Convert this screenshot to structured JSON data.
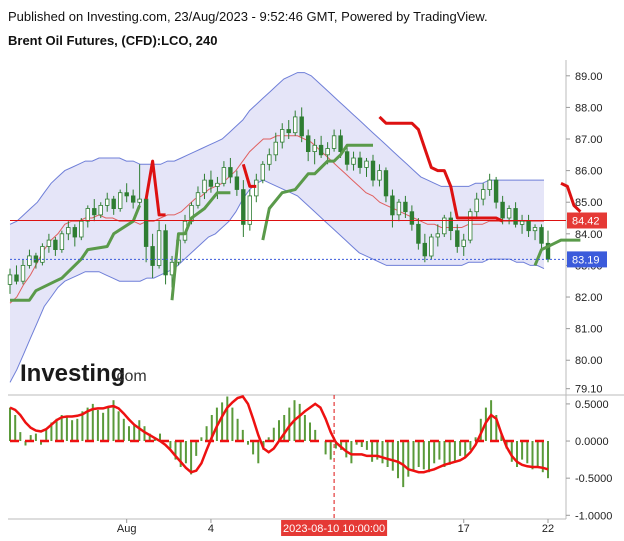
{
  "header": {
    "published": "Published on Investing.com, 23/Aug/2023 - 9:52:46 GMT, Powered by TradingView.",
    "symbol": "Brent Oil Futures, (CFD):LCO, 240"
  },
  "logo": {
    "main": "Investing",
    "suffix": ".com"
  },
  "colors": {
    "candle": "#2e7d32",
    "bb_line": "#6f7fd8",
    "bb_fill": "#dcdcf5",
    "mid": "#e06060",
    "green_stop": "#5a9a4a",
    "red_stop": "#dd1111",
    "price_badge_red": "#e53935",
    "price_badge_blue": "#3b5bdb",
    "osc_bar": "#5a9a3a",
    "osc_line": "#ee1111"
  },
  "chart_data": [
    {
      "type": "candlestick",
      "title": "Brent Oil Futures, (CFD):LCO, 240",
      "ylim": [
        78.9,
        89.5
      ],
      "y_ticks": [
        "89.00",
        "88.00",
        "87.00",
        "86.00",
        "85.00",
        "84.00",
        "83.00",
        "82.00",
        "81.00",
        "80.00",
        "79.10"
      ],
      "x_ticks": [
        "Aug",
        "4",
        "17",
        "22"
      ],
      "crosshair_label": "2023-08-10 10:00:00",
      "price_labels": {
        "red": "84.42",
        "blue": "83.19"
      },
      "ohlc": [
        [
          82.4,
          82.9,
          82.1,
          82.7
        ],
        [
          82.7,
          83.0,
          82.4,
          82.5
        ],
        [
          82.5,
          83.2,
          82.4,
          83.0
        ],
        [
          83.0,
          83.5,
          82.9,
          83.3
        ],
        [
          83.3,
          83.4,
          82.9,
          83.1
        ],
        [
          83.1,
          83.7,
          83.0,
          83.6
        ],
        [
          83.6,
          84.0,
          83.4,
          83.8
        ],
        [
          83.8,
          83.9,
          83.3,
          83.5
        ],
        [
          83.5,
          84.1,
          83.4,
          84.0
        ],
        [
          84.0,
          84.4,
          83.8,
          84.2
        ],
        [
          84.2,
          84.3,
          83.6,
          83.9
        ],
        [
          83.9,
          84.5,
          83.8,
          84.4
        ],
        [
          84.4,
          84.9,
          84.2,
          84.8
        ],
        [
          84.8,
          85.1,
          84.4,
          84.6
        ],
        [
          84.6,
          85.0,
          84.5,
          84.9
        ],
        [
          84.9,
          85.3,
          84.7,
          85.1
        ],
        [
          85.1,
          85.2,
          84.6,
          84.8
        ],
        [
          84.8,
          85.4,
          84.7,
          85.3
        ],
        [
          85.3,
          85.6,
          85.0,
          85.2
        ],
        [
          85.2,
          85.4,
          84.8,
          85.0
        ],
        [
          85.0,
          86.2,
          84.9,
          85.1
        ],
        [
          85.1,
          85.2,
          83.1,
          83.6
        ],
        [
          83.6,
          84.0,
          82.6,
          83.0
        ],
        [
          83.0,
          84.4,
          82.9,
          84.1
        ],
        [
          84.1,
          84.3,
          82.4,
          82.7
        ],
        [
          82.7,
          83.3,
          82.3,
          83.1
        ],
        [
          83.1,
          84.0,
          83.0,
          83.8
        ],
        [
          83.8,
          84.6,
          83.7,
          84.4
        ],
        [
          84.4,
          85.0,
          84.3,
          84.9
        ],
        [
          84.9,
          85.5,
          84.8,
          85.3
        ],
        [
          85.3,
          85.9,
          85.1,
          85.7
        ],
        [
          85.7,
          86.0,
          85.3,
          85.5
        ],
        [
          85.5,
          85.8,
          85.1,
          85.6
        ],
        [
          85.6,
          86.3,
          85.5,
          86.1
        ],
        [
          86.1,
          86.4,
          85.6,
          85.8
        ],
        [
          85.8,
          86.0,
          85.2,
          85.4
        ],
        [
          85.4,
          85.7,
          83.9,
          84.3
        ],
        [
          84.3,
          85.4,
          84.1,
          85.2
        ],
        [
          85.2,
          85.9,
          85.0,
          85.7
        ],
        [
          85.7,
          86.3,
          85.6,
          86.2
        ],
        [
          86.2,
          86.7,
          86.0,
          86.5
        ],
        [
          86.5,
          87.2,
          86.3,
          86.9
        ],
        [
          86.9,
          87.5,
          86.7,
          87.3
        ],
        [
          87.3,
          87.6,
          87.0,
          87.2
        ],
        [
          87.2,
          87.9,
          87.1,
          87.7
        ],
        [
          87.7,
          88.0,
          86.9,
          87.1
        ],
        [
          87.1,
          87.3,
          86.3,
          86.6
        ],
        [
          86.6,
          87.0,
          86.2,
          86.8
        ],
        [
          86.8,
          87.1,
          86.4,
          86.5
        ],
        [
          86.5,
          86.9,
          86.2,
          86.7
        ],
        [
          86.7,
          87.3,
          86.6,
          87.1
        ],
        [
          87.1,
          87.3,
          86.4,
          86.6
        ],
        [
          86.6,
          86.8,
          86.0,
          86.2
        ],
        [
          86.2,
          86.6,
          86.0,
          86.4
        ],
        [
          86.4,
          86.6,
          85.9,
          86.1
        ],
        [
          86.1,
          86.4,
          85.8,
          86.3
        ],
        [
          86.3,
          86.5,
          85.5,
          85.7
        ],
        [
          85.7,
          86.2,
          85.5,
          86.0
        ],
        [
          86.0,
          86.1,
          85.0,
          85.2
        ],
        [
          85.2,
          85.4,
          84.2,
          84.6
        ],
        [
          84.6,
          85.1,
          84.4,
          85.0
        ],
        [
          85.0,
          85.2,
          84.5,
          84.7
        ],
        [
          84.7,
          84.9,
          84.1,
          84.3
        ],
        [
          84.3,
          84.5,
          83.5,
          83.7
        ],
        [
          83.7,
          84.0,
          83.1,
          83.3
        ],
        [
          83.3,
          84.0,
          83.2,
          83.9
        ],
        [
          83.9,
          84.3,
          83.6,
          84.0
        ],
        [
          84.0,
          84.6,
          83.9,
          84.5
        ],
        [
          84.5,
          84.7,
          83.8,
          84.1
        ],
        [
          84.1,
          84.3,
          83.4,
          83.6
        ],
        [
          83.6,
          84.0,
          83.3,
          83.8
        ],
        [
          83.8,
          84.8,
          83.7,
          84.7
        ],
        [
          84.7,
          85.3,
          84.5,
          85.1
        ],
        [
          85.1,
          85.6,
          84.9,
          85.4
        ],
        [
          85.4,
          85.9,
          85.2,
          85.7
        ],
        [
          85.7,
          85.8,
          84.8,
          85.0
        ],
        [
          85.0,
          85.2,
          84.3,
          84.5
        ],
        [
          84.5,
          84.9,
          84.3,
          84.8
        ],
        [
          84.8,
          85.0,
          84.2,
          84.3
        ],
        [
          84.3,
          84.6,
          84.0,
          84.4
        ],
        [
          84.4,
          84.6,
          83.9,
          84.1
        ],
        [
          84.1,
          84.3,
          83.8,
          84.2
        ],
        [
          84.2,
          84.3,
          83.5,
          83.7
        ],
        [
          83.7,
          84.1,
          83.1,
          83.2
        ]
      ],
      "bb_upper": [
        84.3,
        84.4,
        84.6,
        84.8,
        85.0,
        85.3,
        85.6,
        85.8,
        86.0,
        86.1,
        86.2,
        86.3,
        86.3,
        86.4,
        86.4,
        86.4,
        86.4,
        86.3,
        86.3,
        86.2,
        86.2,
        86.2,
        86.2,
        86.3,
        86.3,
        86.4,
        86.5,
        86.6,
        86.7,
        86.8,
        86.9,
        87.0,
        87.2,
        87.4,
        87.6,
        87.9,
        88.1,
        88.3,
        88.5,
        88.7,
        88.9,
        89.0,
        89.1,
        89.1,
        89.0,
        88.8,
        88.6,
        88.4,
        88.2,
        88.0,
        87.8,
        87.6,
        87.4,
        87.2,
        87.0,
        86.8,
        86.6,
        86.4,
        86.2,
        86.0,
        85.8,
        85.7,
        85.6,
        85.5,
        85.5,
        85.5,
        85.5,
        85.5,
        85.6,
        85.6,
        85.7,
        85.7,
        85.7,
        85.7,
        85.7,
        85.7,
        85.7,
        85.7,
        85.7
      ],
      "bb_lower": [
        79.3,
        79.7,
        80.2,
        80.7,
        81.2,
        81.7,
        82.0,
        82.3,
        82.5,
        82.6,
        82.7,
        82.8,
        82.8,
        82.8,
        82.7,
        82.6,
        82.5,
        82.5,
        82.5,
        82.5,
        82.6,
        82.6,
        82.7,
        82.8,
        82.9,
        83.1,
        83.3,
        83.5,
        83.7,
        83.9,
        84.0,
        84.2,
        84.4,
        84.7,
        85.1,
        85.4,
        85.6,
        85.7,
        85.6,
        85.5,
        85.4,
        85.3,
        85.2,
        85.0,
        84.8,
        84.6,
        84.4,
        84.2,
        84.0,
        83.8,
        83.6,
        83.4,
        83.3,
        83.2,
        83.1,
        83.0,
        83.0,
        83.0,
        83.0,
        83.0,
        83.0,
        83.0,
        83.0,
        83.0,
        83.0,
        83.0,
        83.0,
        83.1,
        83.1,
        83.1,
        83.2,
        83.2,
        83.2,
        83.2,
        83.1,
        83.1,
        83.0,
        83.0,
        82.9
      ],
      "bb_basis": [
        81.8,
        82.0,
        82.4,
        82.7,
        83.1,
        83.5,
        83.8,
        84.0,
        84.3,
        84.4,
        84.4,
        84.5,
        84.5,
        84.6,
        84.5,
        84.5,
        84.4,
        84.4,
        84.4,
        84.3,
        84.4,
        84.4,
        84.5,
        84.6,
        84.6,
        84.7,
        84.9,
        85.1,
        85.2,
        85.4,
        85.5,
        85.6,
        85.8,
        86.0,
        86.3,
        86.6,
        86.8,
        87.0,
        87.0,
        87.1,
        87.1,
        87.1,
        87.1,
        87.0,
        86.9,
        86.7,
        86.5,
        86.3,
        86.1,
        85.9,
        85.7,
        85.5,
        85.3,
        85.2,
        85.0,
        84.9,
        84.8,
        84.7,
        84.6,
        84.5,
        84.4,
        84.3,
        84.3,
        84.2,
        84.2,
        84.2,
        84.2,
        84.3,
        84.3,
        84.3,
        84.4,
        84.4,
        84.4,
        84.4,
        84.4,
        84.4,
        84.4,
        84.4,
        84.4
      ],
      "stop_green": [
        [
          0,
          81.9
        ],
        [
          3,
          81.9
        ],
        [
          4,
          82.2
        ],
        [
          7,
          82.5
        ],
        [
          8,
          82.6
        ],
        [
          11,
          83.2
        ],
        [
          12,
          83.5
        ],
        [
          15,
          83.6
        ],
        [
          16,
          84.0
        ],
        [
          19,
          84.4
        ],
        [
          20,
          84.9
        ],
        [
          21,
          null
        ],
        [
          24,
          null
        ],
        [
          25,
          81.9
        ],
        [
          26,
          84.0
        ],
        [
          27,
          84.0
        ],
        [
          28,
          84.5
        ],
        [
          30,
          84.8
        ],
        [
          32,
          85.3
        ],
        [
          33,
          85.3
        ],
        [
          34,
          85.3
        ],
        [
          35,
          null
        ],
        [
          38,
          null
        ],
        [
          39,
          83.8
        ],
        [
          40,
          84.8
        ],
        [
          42,
          85.3
        ],
        [
          44,
          85.4
        ],
        [
          46,
          85.9
        ],
        [
          47,
          85.9
        ],
        [
          48,
          86.1
        ],
        [
          49,
          86.3
        ],
        [
          50,
          86.3
        ],
        [
          51,
          86.5
        ],
        [
          52,
          86.8
        ],
        [
          53,
          86.8
        ],
        [
          54,
          86.8
        ],
        [
          55,
          86.8
        ],
        [
          56,
          86.8
        ],
        [
          57,
          null
        ],
        [
          80,
          null
        ],
        [
          81,
          83.0
        ],
        [
          82,
          83.5
        ],
        [
          83,
          83.6
        ],
        [
          84,
          83.7
        ],
        [
          85,
          83.8
        ],
        [
          86,
          83.8
        ],
        [
          87,
          83.8
        ],
        [
          88,
          83.8
        ]
      ],
      "stop_red": [
        [
          0,
          null
        ],
        [
          20,
          null
        ],
        [
          21,
          85.1
        ],
        [
          22,
          86.3
        ],
        [
          23,
          84.6
        ],
        [
          24,
          84.6
        ],
        [
          25,
          null
        ],
        [
          35,
          null
        ],
        [
          36,
          86.2
        ],
        [
          37,
          85.5
        ],
        [
          38,
          85.5
        ],
        [
          39,
          null
        ],
        [
          56,
          null
        ],
        [
          57,
          87.7
        ],
        [
          58,
          87.5
        ],
        [
          59,
          87.5
        ],
        [
          60,
          87.5
        ],
        [
          61,
          87.5
        ],
        [
          62,
          87.5
        ],
        [
          63,
          87.3
        ],
        [
          64,
          86.7
        ],
        [
          65,
          86.1
        ],
        [
          66,
          86.0
        ],
        [
          67,
          86.0
        ],
        [
          68,
          85.5
        ],
        [
          69,
          84.5
        ],
        [
          70,
          84.5
        ],
        [
          71,
          84.5
        ],
        [
          72,
          84.5
        ],
        [
          73,
          84.5
        ],
        [
          74,
          84.5
        ],
        [
          75,
          84.5
        ],
        [
          76,
          84.4
        ],
        [
          77,
          null
        ],
        [
          84,
          null
        ],
        [
          85,
          85.6
        ],
        [
          86,
          85.5
        ],
        [
          87,
          84.9
        ],
        [
          88,
          84.7
        ]
      ]
    },
    {
      "type": "bar",
      "title": "",
      "ylim": [
        -1.05,
        0.62
      ],
      "y_ticks": [
        "0.5000",
        "0.0000",
        "-0.5000",
        "-1.0000"
      ],
      "values": [
        0.45,
        0.35,
        0.12,
        -0.06,
        0.08,
        0.1,
        -0.05,
        0.15,
        0.25,
        0.3,
        0.35,
        0.32,
        0.28,
        0.3,
        0.4,
        0.45,
        0.5,
        0.42,
        0.38,
        0.45,
        0.55,
        0.4,
        0.3,
        0.2,
        0.22,
        0.28,
        0.2,
        0.1,
        0.05,
        0.1,
        0.0,
        -0.1,
        -0.25,
        -0.35,
        -0.3,
        -0.45,
        -0.2,
        0.05,
        0.2,
        0.35,
        0.45,
        0.52,
        0.6,
        0.45,
        0.3,
        0.15,
        -0.05,
        -0.18,
        -0.3,
        -0.12,
        0.05,
        0.18,
        0.28,
        0.35,
        0.45,
        0.55,
        0.5,
        0.35,
        0.25,
        0.15,
        0.0,
        -0.18,
        -0.25,
        -0.1,
        -0.12,
        -0.22,
        -0.3,
        -0.05,
        -0.08,
        -0.12,
        -0.28,
        -0.25,
        -0.3,
        -0.35,
        -0.4,
        -0.5,
        -0.62,
        -0.48,
        -0.4,
        -0.35,
        -0.38,
        -0.42,
        -0.3,
        -0.25,
        -0.35,
        -0.32,
        -0.28,
        -0.2,
        -0.22,
        -0.12,
        0.05,
        0.3,
        0.45,
        0.55,
        0.35,
        0.1,
        -0.1,
        -0.28,
        -0.35,
        -0.25,
        -0.3,
        -0.38,
        -0.35,
        -0.42,
        -0.5
      ],
      "line": [
        0.45,
        0.42,
        0.35,
        0.25,
        0.18,
        0.14,
        0.13,
        0.16,
        0.22,
        0.28,
        0.32,
        0.33,
        0.33,
        0.34,
        0.36,
        0.4,
        0.43,
        0.44,
        0.44,
        0.46,
        0.47,
        0.44,
        0.37,
        0.29,
        0.22,
        0.17,
        0.12,
        0.08,
        0.04,
        0.0,
        -0.05,
        -0.12,
        -0.2,
        -0.28,
        -0.36,
        -0.42,
        -0.4,
        -0.3,
        -0.12,
        0.05,
        0.2,
        0.33,
        0.45,
        0.52,
        0.58,
        0.6,
        0.5,
        0.3,
        0.08,
        -0.1,
        -0.15,
        -0.1,
        0.0,
        0.1,
        0.2,
        0.28,
        0.34,
        0.4,
        0.45,
        0.5,
        0.45,
        0.3,
        0.12,
        -0.02,
        -0.08,
        -0.14,
        -0.18,
        -0.18,
        -0.18,
        -0.2,
        -0.2,
        -0.2,
        -0.22,
        -0.24,
        -0.26,
        -0.28,
        -0.32,
        -0.38,
        -0.4,
        -0.42,
        -0.42,
        -0.4,
        -0.38,
        -0.35,
        -0.32,
        -0.3,
        -0.28,
        -0.26,
        -0.22,
        -0.15,
        -0.05,
        0.1,
        0.25,
        0.35,
        0.3,
        0.1,
        -0.08,
        -0.2,
        -0.28,
        -0.32,
        -0.34,
        -0.35,
        -0.35,
        -0.36,
        -0.38
      ]
    }
  ]
}
